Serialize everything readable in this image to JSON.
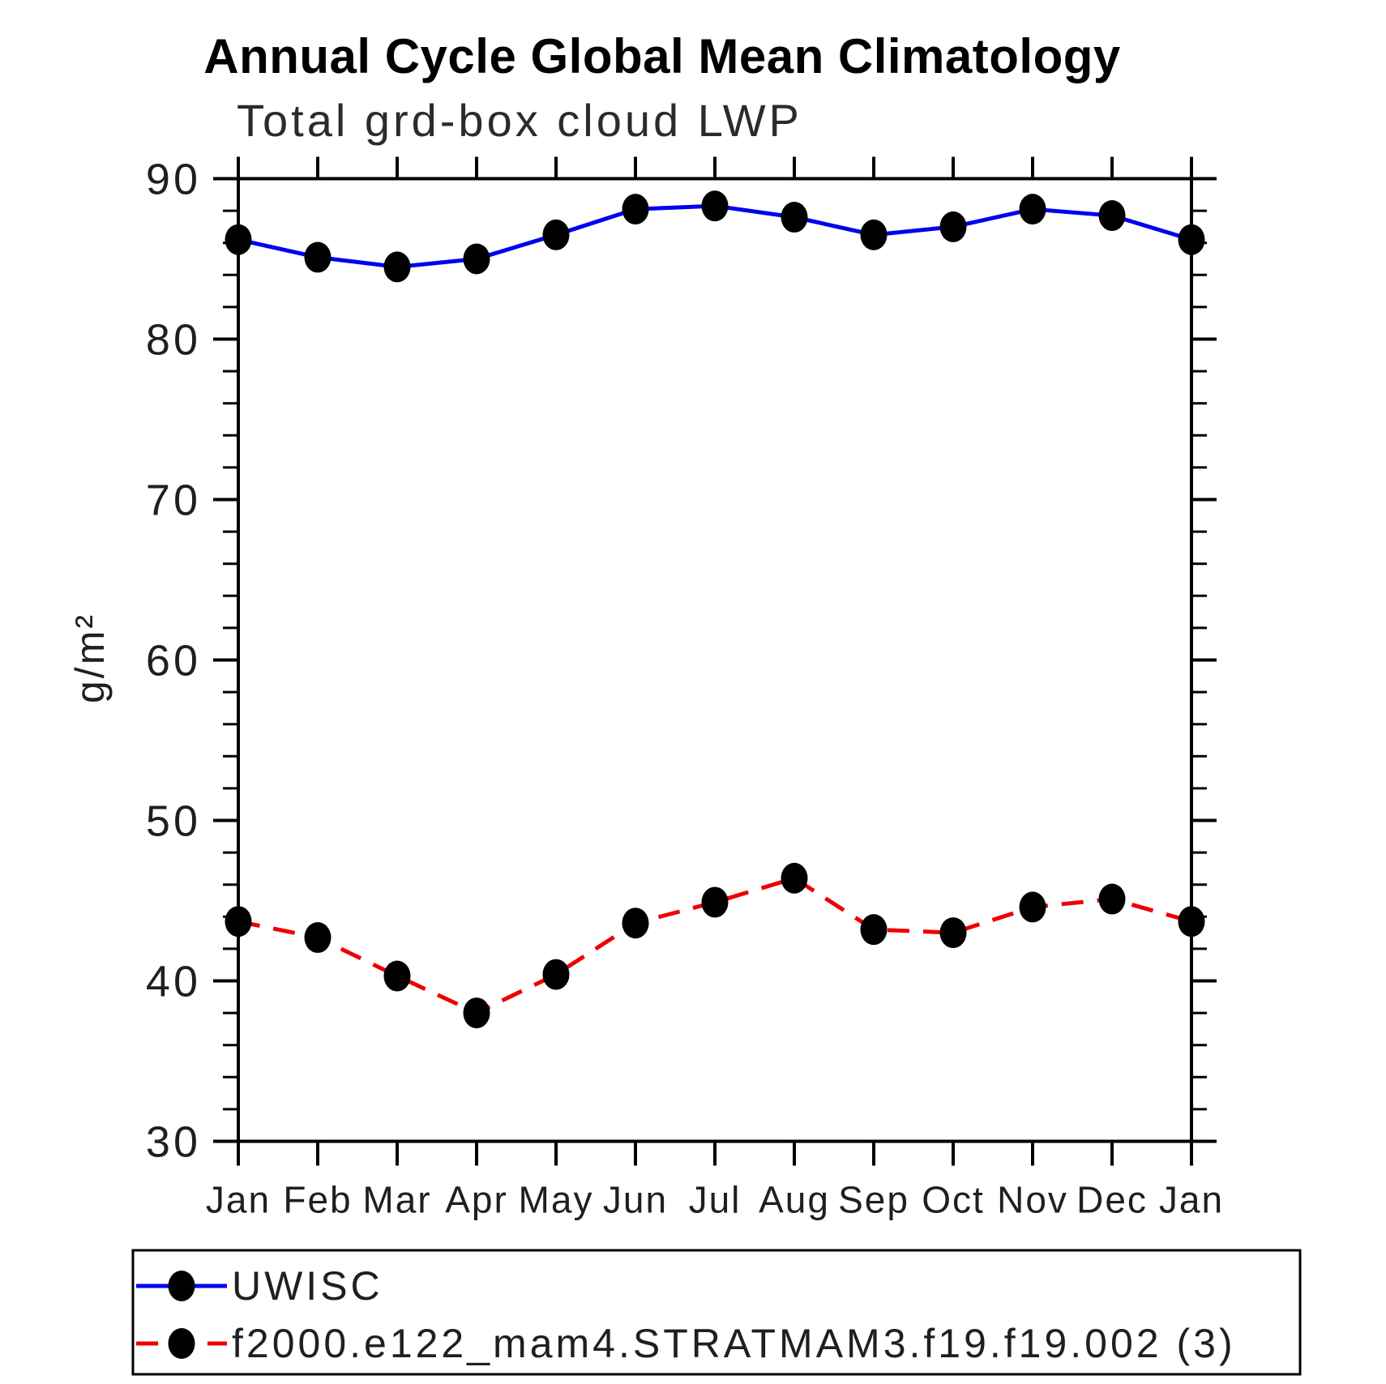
{
  "header": {
    "title": "Annual Cycle Global Mean Climatology",
    "subtitle": "Total grd-box cloud LWP"
  },
  "axes": {
    "y_label": "g/m²",
    "y_tick_labels": [
      "30",
      "40",
      "50",
      "60",
      "70",
      "80",
      "90"
    ],
    "x_tick_labels": [
      "Jan",
      "Feb",
      "Mar",
      "Apr",
      "May",
      "Jun",
      "Jul",
      "Aug",
      "Sep",
      "Oct",
      "Nov",
      "Dec",
      "Jan"
    ]
  },
  "chart_data": {
    "type": "line",
    "title": "Annual Cycle Global Mean Climatology",
    "subtitle": "Total grd-box cloud LWP",
    "ylabel": "g/m²",
    "categories": [
      "Jan",
      "Feb",
      "Mar",
      "Apr",
      "May",
      "Jun",
      "Jul",
      "Aug",
      "Sep",
      "Oct",
      "Nov",
      "Dec",
      "Jan"
    ],
    "series": [
      {
        "name": "UWISC",
        "color": "#0000ee",
        "line_style": "solid",
        "marker": "filled-circle",
        "marker_color": "#000000",
        "values": [
          86.2,
          85.1,
          84.5,
          85.0,
          86.5,
          88.1,
          88.3,
          87.6,
          86.5,
          87.0,
          88.1,
          87.7,
          86.2
        ]
      },
      {
        "name": "f2000.e122_mam4.STRATMAM3.f19.f19.002 (3)",
        "color": "#ee0000",
        "line_style": "dashed",
        "marker": "filled-circle",
        "marker_color": "#000000",
        "values": [
          43.7,
          42.7,
          40.3,
          38.0,
          40.4,
          43.6,
          44.9,
          46.4,
          43.2,
          43.0,
          44.6,
          45.1,
          43.7
        ]
      }
    ],
    "ylim": [
      30,
      90
    ],
    "ytick_major_step": 10,
    "ytick_minor_step": 2,
    "grid": false,
    "legend_position": "bottom"
  }
}
